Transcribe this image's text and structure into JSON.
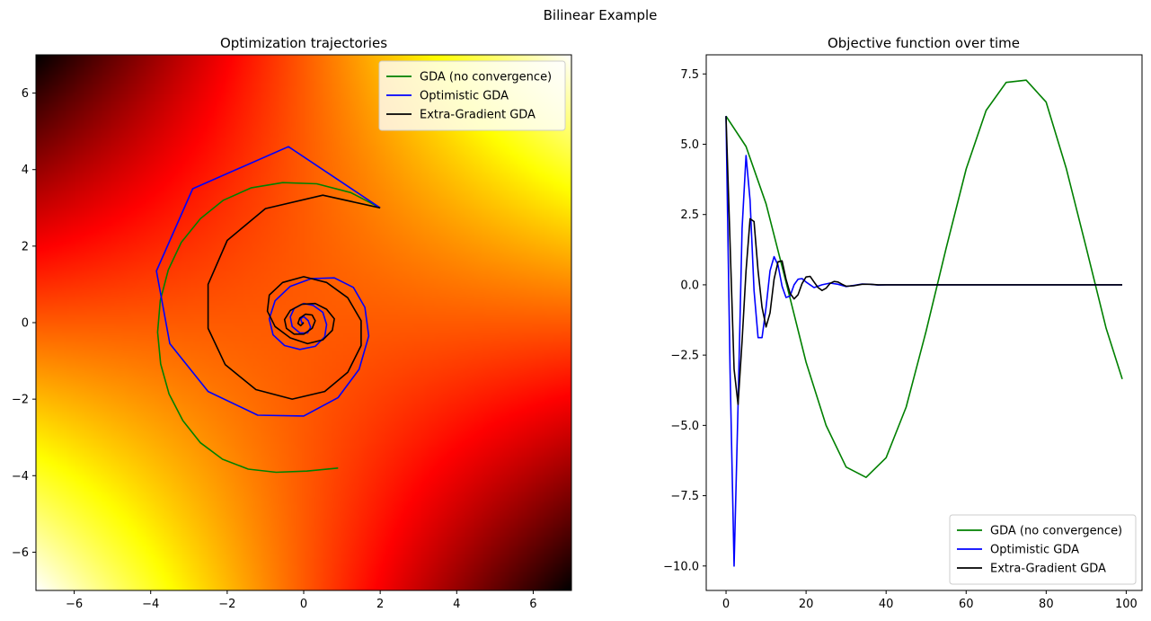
{
  "figure": {
    "suptitle": "Bilinear Example"
  },
  "chart_data": [
    {
      "type": "line",
      "title": "Optimization trajectories",
      "xlabel": "",
      "ylabel": "",
      "xlim": [
        -7,
        7
      ],
      "ylim": [
        -7,
        7
      ],
      "xticks": [
        -6,
        -4,
        -2,
        0,
        2,
        4,
        6
      ],
      "yticks": [
        -6,
        -4,
        -2,
        0,
        2,
        4,
        6
      ],
      "xtick_labels": [
        "−6",
        "−4",
        "−2",
        "0",
        "2",
        "4",
        "6"
      ],
      "ytick_labels": [
        "−6",
        "−4",
        "−2",
        "0",
        "2",
        "4",
        "6"
      ],
      "grid": false,
      "legend_position": "upper-right",
      "background": "heatmap of the bilinear objective x*y with the 'hot' colormap (white / yellow at bottom-left, black at top-left and bottom-right)",
      "series": [
        {
          "name": "GDA (no convergence)",
          "color": "#008000",
          "x": [
            2.0,
            1.23,
            0.34,
            -0.55,
            -1.38,
            -2.1,
            -2.7,
            -3.2,
            -3.54,
            -3.75,
            -3.82,
            -3.74,
            -3.52,
            -3.16,
            -2.7,
            -2.12,
            -1.45,
            -0.72,
            0.08,
            0.9
          ],
          "y": [
            3.0,
            3.4,
            3.63,
            3.66,
            3.52,
            3.2,
            2.72,
            2.1,
            1.38,
            0.58,
            -0.25,
            -1.08,
            -1.86,
            -2.56,
            -3.14,
            -3.57,
            -3.83,
            -3.91,
            -3.88,
            -3.8
          ]
        },
        {
          "name": "Optimistic GDA",
          "color": "#0000ff",
          "x": [
            2.0,
            -0.4,
            -2.9,
            -3.85,
            -3.5,
            -2.5,
            -1.2,
            0.0,
            0.9,
            1.45,
            1.7,
            1.6,
            1.3,
            0.8,
            0.2,
            -0.35,
            -0.75,
            -0.9,
            -0.8,
            -0.5,
            -0.1,
            0.3,
            0.55,
            0.6,
            0.5,
            0.25,
            0.0,
            -0.25,
            -0.35,
            -0.3,
            -0.1,
            0.1,
            0.18,
            0.12,
            0.0,
            -0.08,
            -0.05,
            0.0
          ],
          "y": [
            3.0,
            4.6,
            3.5,
            1.35,
            -0.55,
            -1.8,
            -2.42,
            -2.44,
            -1.96,
            -1.22,
            -0.35,
            0.4,
            0.92,
            1.17,
            1.15,
            0.95,
            0.57,
            0.1,
            -0.32,
            -0.6,
            -0.7,
            -0.62,
            -0.37,
            -0.05,
            0.27,
            0.45,
            0.5,
            0.37,
            0.15,
            -0.1,
            -0.27,
            -0.27,
            -0.12,
            0.05,
            0.16,
            0.1,
            0.0,
            0.0
          ]
        },
        {
          "name": "Extra-Gradient GDA",
          "color": "#000000",
          "x": [
            2.0,
            0.5,
            -1.0,
            -2.0,
            -2.5,
            -2.5,
            -2.05,
            -1.25,
            -0.3,
            0.55,
            1.15,
            1.5,
            1.5,
            1.15,
            0.6,
            0.0,
            -0.55,
            -0.9,
            -0.95,
            -0.75,
            -0.35,
            0.1,
            0.5,
            0.75,
            0.8,
            0.6,
            0.3,
            -0.05,
            -0.35,
            -0.5,
            -0.45,
            -0.25,
            0.0,
            0.22,
            0.3,
            0.22,
            0.05,
            -0.1,
            -0.15,
            -0.08,
            0.0
          ],
          "y": [
            3.0,
            3.33,
            2.98,
            2.15,
            1.0,
            -0.15,
            -1.1,
            -1.75,
            -2.0,
            -1.8,
            -1.3,
            -0.6,
            0.05,
            0.65,
            1.05,
            1.2,
            1.05,
            0.72,
            0.3,
            -0.1,
            -0.4,
            -0.55,
            -0.45,
            -0.2,
            0.1,
            0.35,
            0.5,
            0.48,
            0.32,
            0.08,
            -0.15,
            -0.3,
            -0.3,
            -0.15,
            0.05,
            0.2,
            0.22,
            0.12,
            -0.02,
            -0.08,
            0.0
          ]
        }
      ]
    },
    {
      "type": "line",
      "title": "Objective function over time",
      "xlabel": "",
      "ylabel": "",
      "xlim": [
        -4.95,
        103.95
      ],
      "ylim": [
        -10.87,
        8.18
      ],
      "xticks": [
        0,
        20,
        40,
        60,
        80,
        100
      ],
      "yticks": [
        -10,
        -7.5,
        -5,
        -2.5,
        0,
        2.5,
        5,
        7.5
      ],
      "xtick_labels": [
        "0",
        "20",
        "40",
        "60",
        "80",
        "100"
      ],
      "ytick_labels": [
        "−10.0",
        "−7.5",
        "−5.0",
        "−2.5",
        "0.0",
        "2.5",
        "5.0",
        "7.5"
      ],
      "grid": false,
      "legend_position": "lower-right",
      "series": [
        {
          "name": "GDA (no convergence)",
          "color": "#008000",
          "x": [
            0,
            5,
            10,
            15,
            20,
            25,
            30,
            35,
            40,
            45,
            50,
            55,
            60,
            65,
            70,
            75,
            80,
            85,
            90,
            95,
            99
          ],
          "y": [
            6.0,
            4.92,
            2.88,
            0.1,
            -2.75,
            -5.0,
            -6.48,
            -6.85,
            -6.15,
            -4.35,
            -1.65,
            1.3,
            4.12,
            6.2,
            7.2,
            7.28,
            6.5,
            4.15,
            1.32,
            -1.55,
            -3.35
          ]
        },
        {
          "name": "Optimistic GDA",
          "color": "#0000ff",
          "x": [
            0,
            1,
            2,
            3,
            4,
            5,
            6,
            7,
            8,
            9,
            10,
            11,
            12,
            13,
            14,
            15,
            16,
            17,
            18,
            19,
            20,
            22,
            24,
            26,
            28,
            30,
            32,
            34,
            36,
            38,
            40,
            45,
            50,
            99
          ],
          "y": [
            6.0,
            -3.0,
            -10.0,
            -4.3,
            2.0,
            4.6,
            3.0,
            -0.2,
            -1.88,
            -1.88,
            -0.8,
            0.5,
            1.0,
            0.7,
            -0.05,
            -0.45,
            -0.4,
            0.0,
            0.2,
            0.22,
            0.1,
            -0.1,
            0.0,
            0.06,
            0.02,
            -0.06,
            -0.02,
            0.03,
            0.02,
            -0.01,
            0.0,
            0.0,
            0.0,
            0.0
          ]
        },
        {
          "name": "Extra-Gradient GDA",
          "color": "#000000",
          "x": [
            0,
            1,
            2,
            3,
            4,
            5,
            6,
            7,
            8,
            9,
            10,
            11,
            12,
            13,
            14,
            15,
            16,
            17,
            18,
            19,
            20,
            21,
            22,
            23,
            24,
            25,
            26,
            27,
            28,
            29,
            30,
            32,
            34,
            36,
            38,
            40,
            45,
            50,
            99
          ],
          "y": [
            6.0,
            1.5,
            -3.0,
            -4.25,
            -2.0,
            0.5,
            2.35,
            2.25,
            0.5,
            -0.8,
            -1.5,
            -1.0,
            0.2,
            0.82,
            0.85,
            0.2,
            -0.3,
            -0.5,
            -0.35,
            0.05,
            0.28,
            0.3,
            0.1,
            -0.1,
            -0.2,
            -0.12,
            0.05,
            0.12,
            0.1,
            0.02,
            -0.05,
            -0.03,
            0.02,
            0.02,
            0.0,
            0.0,
            0.0,
            0.0,
            0.0
          ]
        }
      ]
    }
  ]
}
